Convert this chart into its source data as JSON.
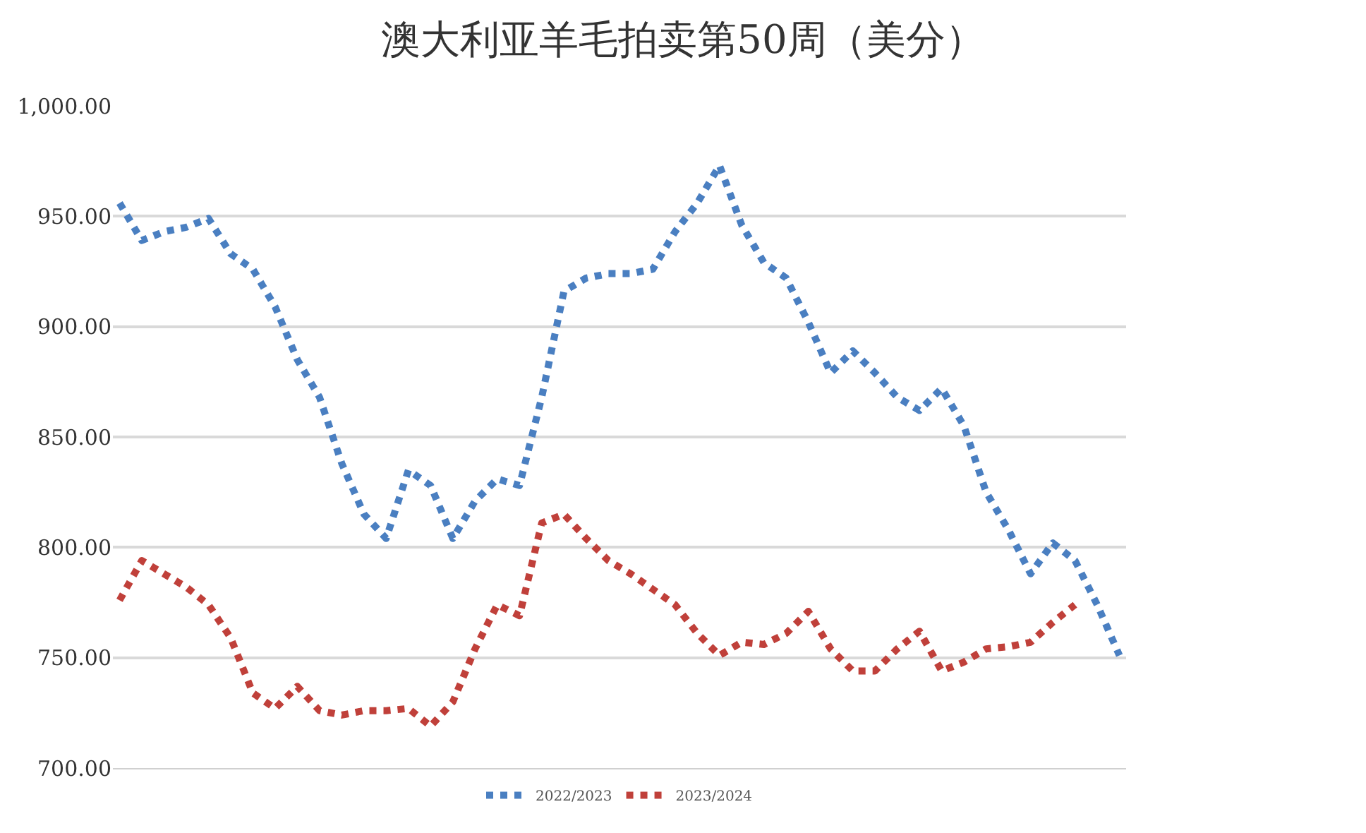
{
  "chart_data": {
    "type": "line",
    "title": "澳大利亚羊毛拍卖第50周（美分）",
    "categories": [
      null,
      null,
      null,
      null,
      null,
      null,
      null,
      null,
      null,
      null,
      null,
      null,
      null,
      null,
      null,
      null,
      null,
      null,
      null,
      null,
      null,
      null,
      null,
      null,
      null,
      null,
      null,
      null,
      null,
      null,
      null,
      null,
      null,
      null,
      null,
      null,
      null,
      null,
      null,
      null,
      null,
      null,
      null,
      null,
      null,
      null
    ],
    "series": [
      {
        "name": "2022/2023",
        "color": "#4a7fc1",
        "values": [
          956,
          939,
          943,
          945,
          949,
          933,
          926,
          909,
          885,
          868,
          838,
          815,
          804,
          835,
          828,
          804,
          821,
          831,
          828,
          868,
          916,
          922,
          924,
          924,
          926,
          943,
          956,
          973,
          946,
          929,
          922,
          902,
          879,
          889,
          879,
          868,
          862,
          872,
          855,
          825,
          808,
          788,
          802,
          794,
          774,
          751
        ]
      },
      {
        "name": "2023/2024",
        "color": "#c0403a",
        "values": [
          776,
          794,
          788,
          782,
          774,
          759,
          734,
          727,
          737,
          726,
          724,
          726,
          726,
          727,
          719,
          730,
          754,
          774,
          769,
          811,
          815,
          804,
          794,
          788,
          781,
          774,
          761,
          751,
          757,
          756,
          761,
          771,
          754,
          744,
          744,
          754,
          762,
          744,
          748,
          754,
          755,
          757,
          766,
          774,
          null,
          null
        ]
      }
    ],
    "ylim": [
      700,
      1000
    ],
    "yticks": [
      {
        "value": 700,
        "label": "700.00"
      },
      {
        "value": 750,
        "label": "750.00"
      },
      {
        "value": 800,
        "label": "800.00"
      },
      {
        "value": 850,
        "label": "850.00"
      },
      {
        "value": 900,
        "label": "900.00"
      },
      {
        "value": 950,
        "label": "950.00"
      },
      {
        "value": 1000,
        "label": "1,000.00"
      }
    ],
    "grid": "y",
    "legend": "bottom",
    "line_style": "dotted",
    "marker": "none"
  }
}
